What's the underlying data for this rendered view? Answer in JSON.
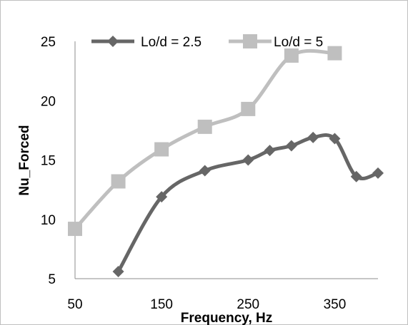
{
  "chart_data": {
    "type": "line",
    "title": "",
    "xlabel": "Frequency, Hz",
    "ylabel": "Nu_Forced",
    "xlim": [
      50,
      400
    ],
    "ylim": [
      5,
      25
    ],
    "xticks": [
      50,
      150,
      250,
      350
    ],
    "yticks": [
      5,
      10,
      15,
      20,
      25
    ],
    "grid": false,
    "legend_position": "top",
    "series": [
      {
        "name": "Lo/d = 2.5",
        "marker": "diamond",
        "color": "#666666",
        "x": [
          100,
          150,
          200,
          250,
          275,
          300,
          325,
          350,
          375,
          400
        ],
        "y": [
          5.6,
          11.9,
          14.1,
          15.0,
          15.8,
          16.2,
          16.9,
          16.8,
          13.6,
          13.9
        ]
      },
      {
        "name": "Lo/d = 5",
        "marker": "square",
        "color": "#bfbfbf",
        "x": [
          50,
          100,
          150,
          200,
          250,
          300,
          350
        ],
        "y": [
          9.2,
          13.2,
          15.9,
          17.8,
          19.3,
          23.8,
          24.0
        ]
      }
    ]
  }
}
